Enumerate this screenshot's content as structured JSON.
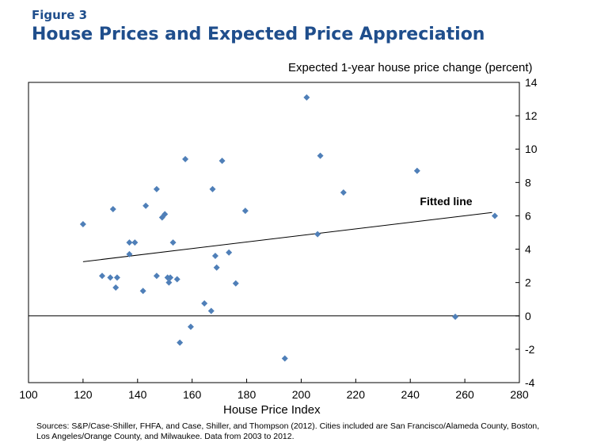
{
  "figure_label": "Figure 3",
  "sources": "Sources: S&P/Case-Shiller, FHFA, and Case, Shiller, and Thompson (2012). Cities included are San Francisco/Alameda County, Boston, Los Angeles/Orange County, and Milwaukee. Data from 2003 to 2012.",
  "colors": {
    "title": "#1f4e8c",
    "marker": "#4f7fb8",
    "axis": "#000000"
  },
  "chart_data": {
    "type": "scatter",
    "title": "House Prices and Expected Price Appreciation",
    "xlabel": "House Price Index",
    "ylabel": "Expected 1-year house price change (percent)",
    "xlim": [
      100,
      280
    ],
    "ylim": [
      -4,
      14
    ],
    "xticks": [
      100,
      120,
      140,
      160,
      180,
      200,
      220,
      240,
      260,
      280
    ],
    "yticks": [
      -4,
      -2,
      0,
      2,
      4,
      6,
      8,
      10,
      12,
      14
    ],
    "zero_line": 0,
    "points": [
      {
        "x": 120,
        "y": 5.5
      },
      {
        "x": 127,
        "y": 2.4
      },
      {
        "x": 130,
        "y": 2.3
      },
      {
        "x": 131,
        "y": 6.4
      },
      {
        "x": 132,
        "y": 1.7
      },
      {
        "x": 132.5,
        "y": 2.3
      },
      {
        "x": 137,
        "y": 4.4
      },
      {
        "x": 137,
        "y": 3.7
      },
      {
        "x": 139,
        "y": 4.4
      },
      {
        "x": 142,
        "y": 1.5
      },
      {
        "x": 143,
        "y": 6.6
      },
      {
        "x": 147,
        "y": 7.6
      },
      {
        "x": 147,
        "y": 2.4
      },
      {
        "x": 149,
        "y": 5.9
      },
      {
        "x": 150,
        "y": 6.1
      },
      {
        "x": 151,
        "y": 2.3
      },
      {
        "x": 151.5,
        "y": 2.0
      },
      {
        "x": 152,
        "y": 2.3
      },
      {
        "x": 153,
        "y": 4.4
      },
      {
        "x": 154.5,
        "y": 2.2
      },
      {
        "x": 155.5,
        "y": -1.6
      },
      {
        "x": 157.5,
        "y": 9.4
      },
      {
        "x": 159.5,
        "y": -0.65
      },
      {
        "x": 164.5,
        "y": 0.75
      },
      {
        "x": 167,
        "y": 0.3
      },
      {
        "x": 167.5,
        "y": 7.6
      },
      {
        "x": 168.5,
        "y": 3.6
      },
      {
        "x": 169,
        "y": 2.9
      },
      {
        "x": 171,
        "y": 9.3
      },
      {
        "x": 173.5,
        "y": 3.8
      },
      {
        "x": 176,
        "y": 1.95
      },
      {
        "x": 179.5,
        "y": 6.3
      },
      {
        "x": 194,
        "y": -2.55
      },
      {
        "x": 202,
        "y": 13.1
      },
      {
        "x": 206,
        "y": 4.9
      },
      {
        "x": 207,
        "y": 9.6
      },
      {
        "x": 215.5,
        "y": 7.4
      },
      {
        "x": 242.5,
        "y": 8.7
      },
      {
        "x": 256.5,
        "y": -0.05
      },
      {
        "x": 271,
        "y": 6.0
      }
    ],
    "fitted_line": {
      "label": "Fitted line",
      "x": [
        120,
        270
      ],
      "y": [
        3.25,
        6.2
      ]
    }
  }
}
